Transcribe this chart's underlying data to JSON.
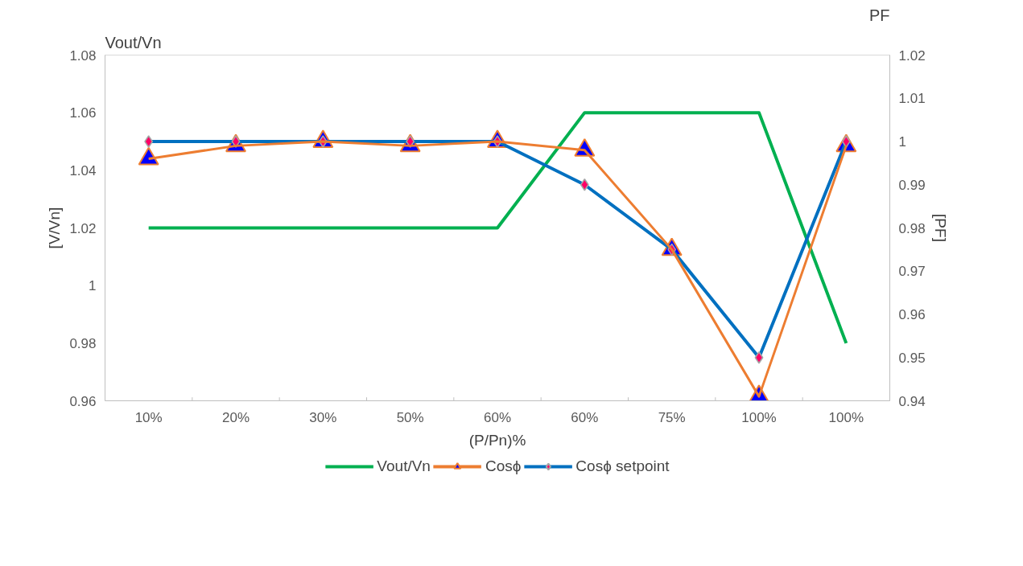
{
  "chart_data": {
    "type": "line",
    "xlabel": "(P/Pn)%",
    "ylabel": "[V/Vn]",
    "y2label": "[PF]",
    "annotations": [
      "Vout/Vn",
      "PF"
    ],
    "categories": [
      "10%",
      "20%",
      "30%",
      "50%",
      "60%",
      "60%",
      "75%",
      "100%",
      "100%"
    ],
    "ylim": [
      0.96,
      1.08
    ],
    "yticks": [
      0.96,
      0.98,
      1,
      1.02,
      1.04,
      1.06,
      1.08
    ],
    "y2lim": [
      0.94,
      1.02
    ],
    "y2ticks": [
      0.94,
      0.95,
      0.96,
      0.97,
      0.98,
      0.99,
      1,
      1.01,
      1.02
    ],
    "grid": false,
    "legend": "bottom",
    "series": [
      {
        "name": "Vout/Vn",
        "color": "#00b050",
        "marker": "none",
        "values": [
          1.02,
          1.02,
          1.02,
          1.02,
          1.02,
          1.06,
          1.06,
          1.06,
          0.98
        ]
      },
      {
        "name": "Cosϕ",
        "color": "#ed7d31",
        "marker": "triangle",
        "axis": "y2",
        "values": [
          0.996,
          0.999,
          1.0,
          0.999,
          1.0,
          0.998,
          0.975,
          0.941,
          0.999
        ]
      },
      {
        "name": "Cosϕ setpoint",
        "color": "#0070c0",
        "marker": "diamond",
        "axis": "y2",
        "values": [
          1.0,
          1.0,
          1.0,
          1.0,
          1.0,
          0.99,
          0.975,
          0.95,
          1.0
        ]
      }
    ]
  }
}
